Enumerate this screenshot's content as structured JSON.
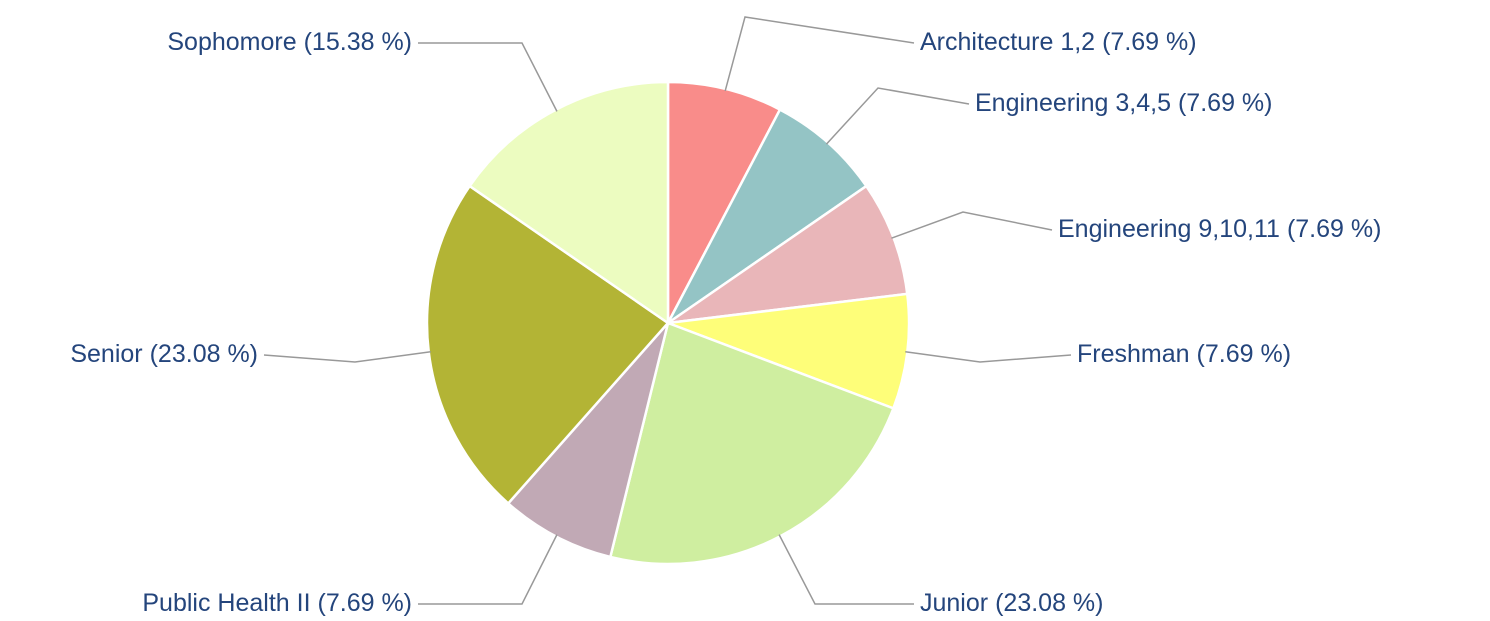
{
  "chart_data": {
    "type": "pie",
    "categories": [
      "Architecture 1,2",
      "Engineering 3,4,5",
      "Engineering 9,10,11",
      "Freshman",
      "Junior",
      "Public Health II",
      "Senior",
      "Sophomore"
    ],
    "values": [
      7.69,
      7.69,
      7.69,
      7.69,
      23.08,
      7.69,
      23.08,
      15.38
    ],
    "value_labels": [
      "(7.69 %)",
      "(7.69 %)",
      "(7.69 %)",
      "(7.69 %)",
      "(23.08 %)",
      "(7.69 %)",
      "(23.08 %)",
      "(15.38 %)"
    ],
    "colors": [
      "#f98c8a",
      "#94c4c5",
      "#e9b6b9",
      "#fefe79",
      "#cfeea0",
      "#c1a9b5",
      "#b3b435",
      "#ecfcc0"
    ]
  }
}
